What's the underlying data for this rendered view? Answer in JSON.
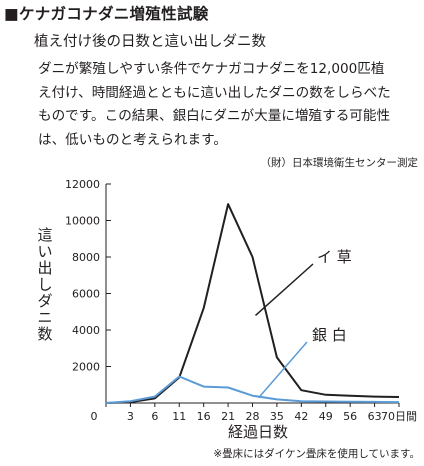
{
  "header": {
    "title": "■ケナガコナダニ増殖性試験",
    "subtitle": "植え付け後の日数と這い出しダニ数"
  },
  "description": {
    "lines": [
      "ダニが繁殖しやすい条件でケナガコナダニを12,000匹植",
      "え付け、時間経過とともに這い出したダニの数をしらべた",
      "ものです。この結果、銀白にダニが大量に増殖する可能性",
      "は、低いものと考えられます。"
    ]
  },
  "source": "（財）日本環境衛生センター測定",
  "footnote": "※畳床にはダイケン畳床を使用しています。",
  "chart_data": {
    "type": "line",
    "title": "",
    "xlabel": "経過日数",
    "ylabel": "這い出しダニ数",
    "x_tick_labels": [
      "0",
      "3",
      "6",
      "11",
      "16",
      "21",
      "28",
      "35",
      "42",
      "49",
      "56",
      "63",
      "70日間"
    ],
    "y_tick_labels": [
      "2000",
      "4000",
      "6000",
      "8000",
      "10000",
      "12000"
    ],
    "y_ticks": [
      2000,
      4000,
      6000,
      8000,
      10000,
      12000
    ],
    "ylim": [
      0,
      12000
    ],
    "grid": false,
    "series": [
      {
        "name": "イ 草",
        "color": "#231f20",
        "values": [
          0,
          50,
          250,
          1400,
          5200,
          10900,
          8000,
          2500,
          700,
          450,
          400,
          350,
          330
        ]
      },
      {
        "name": "銀 白",
        "color": "#5b9bd5",
        "values": [
          0,
          100,
          350,
          1450,
          900,
          850,
          400,
          200,
          100,
          80,
          70,
          60,
          50
        ]
      }
    ]
  }
}
